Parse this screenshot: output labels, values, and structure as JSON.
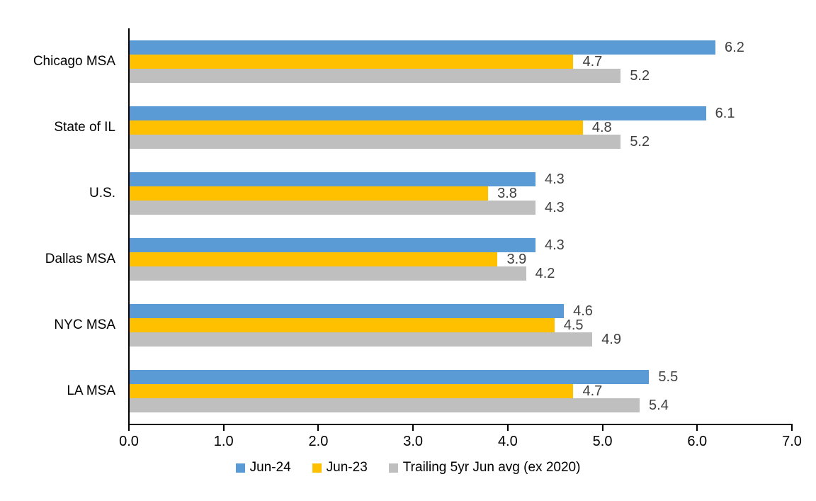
{
  "chart_data": {
    "type": "bar",
    "orientation": "horizontal",
    "title": "",
    "xlabel": "",
    "ylabel": "",
    "grid": false,
    "value_labels": true,
    "legend_position": "bottom",
    "xlim": [
      0.0,
      7.0
    ],
    "tick_step": 1.0,
    "x_ticks": [
      "0.0",
      "1.0",
      "2.0",
      "3.0",
      "4.0",
      "5.0",
      "6.0",
      "7.0"
    ],
    "categories": [
      "Chicago MSA",
      "State of IL",
      "U.S.",
      "Dallas MSA",
      "NYC MSA",
      "LA MSA"
    ],
    "series": [
      {
        "name": "Jun-24",
        "color": "#5B9BD5",
        "values": [
          6.2,
          6.1,
          4.3,
          4.3,
          4.6,
          5.5
        ]
      },
      {
        "name": "Jun-23",
        "color": "#FFC000",
        "values": [
          4.7,
          4.8,
          3.8,
          3.9,
          4.5,
          4.7
        ]
      },
      {
        "name": "Trailing 5yr Jun avg (ex 2020)",
        "color": "#BFBFBF",
        "values": [
          5.2,
          5.2,
          4.3,
          4.2,
          4.9,
          5.4
        ]
      }
    ],
    "colors": {
      "value_label": "#404040",
      "axis": "#000000",
      "text": "#000000",
      "background": "#ffffff"
    }
  }
}
